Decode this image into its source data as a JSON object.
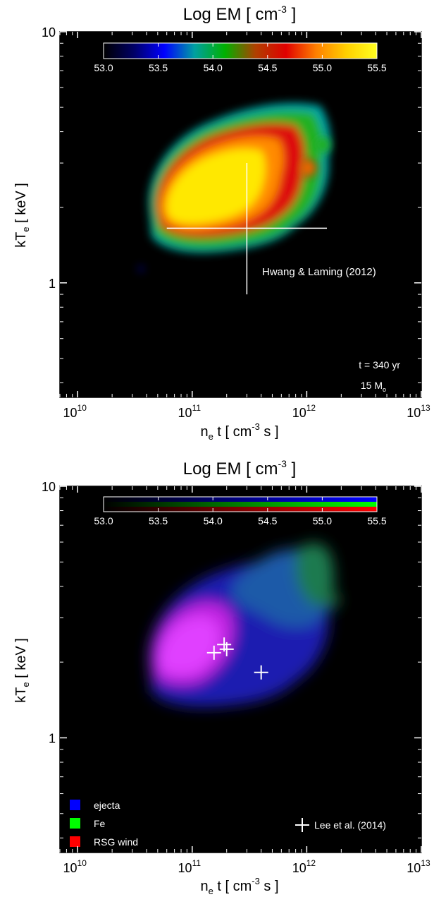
{
  "chart_data": [
    {
      "type": "heatmap",
      "title": "Log EM [ cm",
      "title_sup": "-3",
      "title_end": " ]",
      "xlabel_main": "n",
      "xlabel_sub": "e",
      "xlabel_rest": " t [ cm",
      "xlabel_sup": "-3",
      "xlabel_end": " s ]",
      "ylabel_main": "kT",
      "ylabel_sub": "e",
      "ylabel_end": " [ keV ]",
      "x_scale": "log",
      "y_scale": "log",
      "xlim": [
        7000000000.0,
        10000000000000.0
      ],
      "ylim": [
        0.35,
        10
      ],
      "x_ticks": [
        {
          "value": 10000000000.0,
          "base": "10",
          "exp": "10"
        },
        {
          "value": 100000000000.0,
          "base": "10",
          "exp": "11"
        },
        {
          "value": 1000000000000.0,
          "base": "10",
          "exp": "12"
        },
        {
          "value": 10000000000000.0,
          "base": "10",
          "exp": "13"
        }
      ],
      "y_ticks": [
        {
          "value": 1,
          "label": "1"
        },
        {
          "value": 10,
          "label": "10"
        }
      ],
      "colorbar": {
        "ticks": [
          "53.0",
          "53.5",
          "54.0",
          "54.5",
          "55.0",
          "55.5"
        ],
        "range": [
          53.0,
          55.5
        ],
        "colormap": [
          "#000000",
          "#000066",
          "#0000ff",
          "#00a0a0",
          "#00b000",
          "#b04000",
          "#e00000",
          "#ff8000",
          "#ffd000",
          "#ffff20"
        ],
        "position": "top"
      },
      "annotations": [
        {
          "text": "Hwang & Laming (2012)",
          "position": "right-middle"
        },
        {
          "text": "t = 340 yr",
          "position": "bottom-right"
        },
        {
          "text": "15 M",
          "sub": "o",
          "position": "bottom-right"
        }
      ],
      "reference_cross": {
        "label": "Hwang & Laming (2012)",
        "x": 300000000000.0,
        "y": 1.65,
        "x_range": [
          60000000000.0,
          1500000000000.0
        ],
        "y_range": [
          0.9,
          3.0
        ]
      },
      "emission_region": {
        "description_values": {
          "peak_log_em": 55.5
        },
        "ridge": [
          {
            "x": 70000000000.0,
            "y": 1.7
          },
          {
            "x": 100000000000.0,
            "y": 2.0
          },
          {
            "x": 150000000000.0,
            "y": 2.3
          },
          {
            "x": 250000000000.0,
            "y": 2.6
          },
          {
            "x": 400000000000.0,
            "y": 2.9
          },
          {
            "x": 600000000000.0,
            "y": 3.1
          }
        ]
      }
    },
    {
      "type": "heatmap",
      "title": "Log EM [ cm",
      "title_sup": "-3",
      "title_end": " ]",
      "xlabel_main": "n",
      "xlabel_sub": "e",
      "xlabel_rest": " t [ cm",
      "xlabel_sup": "-3",
      "xlabel_end": " s ]",
      "ylabel_main": "kT",
      "ylabel_sub": "e",
      "ylabel_end": " [ keV ]",
      "x_scale": "log",
      "y_scale": "log",
      "xlim": [
        7000000000.0,
        10000000000000.0
      ],
      "ylim": [
        0.35,
        10
      ],
      "x_ticks": [
        {
          "value": 10000000000.0,
          "base": "10",
          "exp": "10"
        },
        {
          "value": 100000000000.0,
          "base": "10",
          "exp": "11"
        },
        {
          "value": 1000000000000.0,
          "base": "10",
          "exp": "12"
        },
        {
          "value": 10000000000000.0,
          "base": "10",
          "exp": "13"
        }
      ],
      "y_ticks": [
        {
          "value": 1,
          "label": "1"
        },
        {
          "value": 10,
          "label": "10"
        }
      ],
      "colorbar": {
        "ticks": [
          "53.0",
          "53.5",
          "54.0",
          "54.5",
          "55.0",
          "55.5"
        ],
        "range": [
          53.0,
          55.5
        ],
        "channels": [
          "#0000ff",
          "#00ff00",
          "#ff0000"
        ],
        "position": "top"
      },
      "legend": {
        "position": "bottom-left",
        "items": [
          {
            "label": "ejecta",
            "color": "#0000ff"
          },
          {
            "label": "Fe",
            "color": "#00ff00"
          },
          {
            "label": "RSG wind",
            "color": "#ff0000"
          }
        ]
      },
      "marker_legend": {
        "label": "Lee et al. (2014)",
        "position": "bottom-right"
      },
      "series": [
        {
          "name": "Lee et al. (2014)",
          "marker": "cross",
          "points": [
            {
              "x": 155000000000.0,
              "y": 2.18
            },
            {
              "x": 190000000000.0,
              "y": 2.35
            },
            {
              "x": 200000000000.0,
              "y": 2.25
            },
            {
              "x": 400000000000.0,
              "y": 1.82
            }
          ]
        }
      ]
    }
  ]
}
